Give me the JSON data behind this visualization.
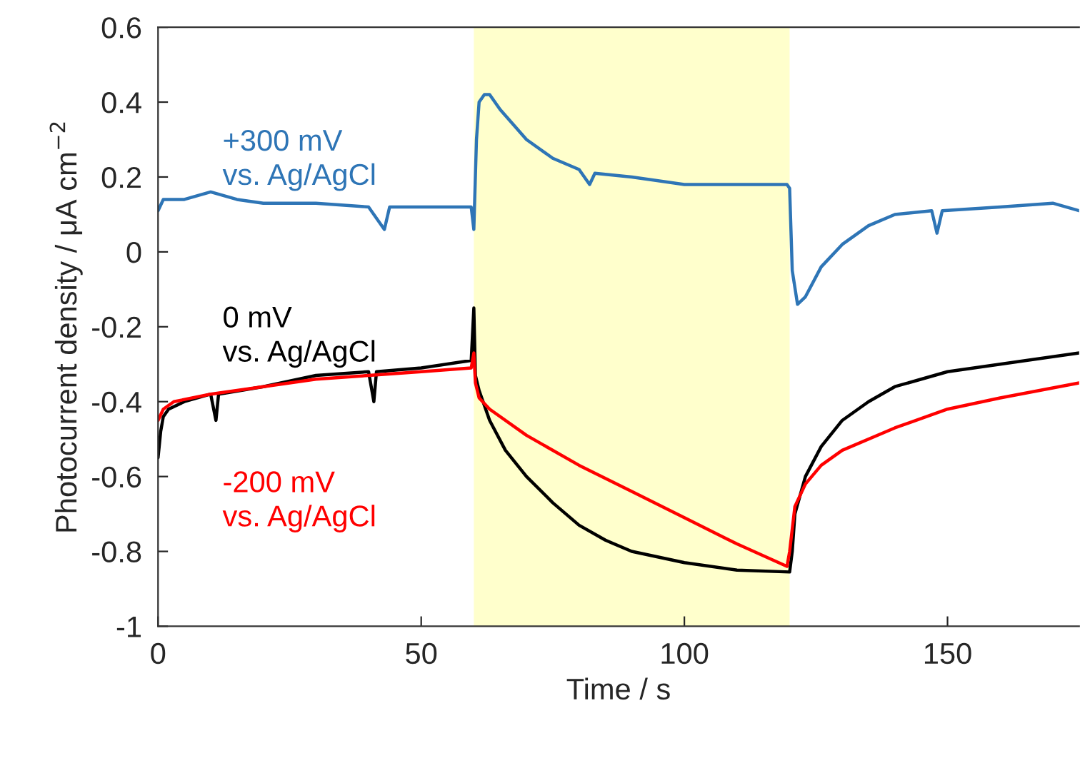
{
  "chart_data": {
    "type": "line",
    "xlabel": "Time / s",
    "ylabel": "Photocurrent density / μA cm$^{−2}$",
    "xlim": [
      0,
      175
    ],
    "xticks": [
      0,
      50,
      100,
      150
    ],
    "ylim": [
      -1,
      0.6
    ],
    "yticks": [
      -1,
      -0.8,
      -0.6,
      -0.4,
      -0.2,
      0,
      0.2,
      0.4,
      0.6
    ],
    "grid": false,
    "legend": false,
    "marker": "none",
    "line_style": "solid",
    "bands": [
      {
        "axis": "x",
        "from": 60,
        "to": 120,
        "color": "#ffffcc"
      }
    ],
    "series": [
      {
        "name": "+300 mV\nvs. Ag/AgCl",
        "color": "#2e75b6",
        "x": [
          0,
          1,
          5,
          10,
          15,
          20,
          30,
          40,
          43,
          44,
          50,
          59.5,
          60,
          60.5,
          61,
          62,
          63,
          65,
          70,
          75,
          80,
          82,
          83,
          90,
          100,
          110,
          119.5,
          120,
          120.5,
          121.5,
          123,
          126,
          130,
          135,
          140,
          147,
          148,
          149,
          160,
          170,
          175
        ],
        "values": [
          0.11,
          0.14,
          0.14,
          0.16,
          0.14,
          0.13,
          0.13,
          0.12,
          0.06,
          0.12,
          0.12,
          0.12,
          0.06,
          0.3,
          0.4,
          0.42,
          0.42,
          0.38,
          0.3,
          0.25,
          0.22,
          0.18,
          0.21,
          0.2,
          0.18,
          0.18,
          0.18,
          0.17,
          -0.05,
          -0.14,
          -0.12,
          -0.04,
          0.02,
          0.07,
          0.1,
          0.11,
          0.05,
          0.11,
          0.12,
          0.13,
          0.11
        ]
      },
      {
        "name": "0 mV\nvs. Ag/AgCl",
        "color": "#000000",
        "x": [
          0,
          0.5,
          1,
          2,
          5,
          10,
          11,
          11.5,
          20,
          30,
          40,
          41,
          41.5,
          50,
          59.5,
          60,
          60.3,
          61,
          63,
          66,
          70,
          75,
          80,
          85,
          90,
          100,
          110,
          120,
          120.5,
          121,
          123,
          126,
          130,
          135,
          140,
          145,
          150,
          160,
          175
        ],
        "values": [
          -0.55,
          -0.48,
          -0.44,
          -0.42,
          -0.4,
          -0.38,
          -0.45,
          -0.38,
          -0.36,
          -0.33,
          -0.32,
          -0.4,
          -0.32,
          -0.31,
          -0.29,
          -0.15,
          -0.33,
          -0.37,
          -0.45,
          -0.53,
          -0.6,
          -0.67,
          -0.73,
          -0.77,
          -0.8,
          -0.83,
          -0.85,
          -0.855,
          -0.8,
          -0.7,
          -0.6,
          -0.52,
          -0.45,
          -0.4,
          -0.36,
          -0.34,
          -0.32,
          -0.3,
          -0.27
        ]
      },
      {
        "name": "-200 mV\nvs. Ag/AgCl",
        "color": "#ff0000",
        "x": [
          0,
          1,
          3,
          10,
          20,
          30,
          40,
          50,
          59.5,
          60,
          60.3,
          61,
          63,
          70,
          80,
          90,
          100,
          110,
          119.5,
          120,
          121,
          123,
          126,
          130,
          140,
          150,
          160,
          175
        ],
        "values": [
          -0.45,
          -0.42,
          -0.4,
          -0.38,
          -0.36,
          -0.34,
          -0.33,
          -0.32,
          -0.31,
          -0.27,
          -0.35,
          -0.39,
          -0.42,
          -0.49,
          -0.57,
          -0.64,
          -0.71,
          -0.78,
          -0.84,
          -0.8,
          -0.68,
          -0.62,
          -0.57,
          -0.53,
          -0.47,
          -0.42,
          -0.39,
          -0.35
        ]
      }
    ]
  }
}
